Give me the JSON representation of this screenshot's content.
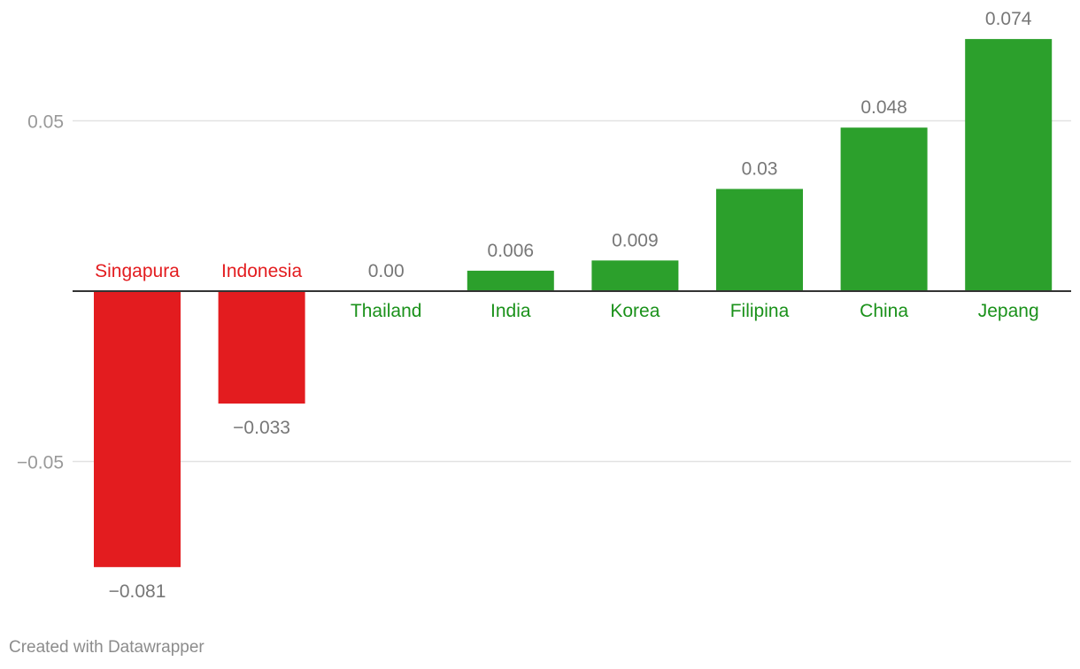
{
  "chart_data": {
    "type": "bar",
    "categories": [
      "Singapura",
      "Indonesia",
      "Thailand",
      "India",
      "Korea",
      "Filipina",
      "China",
      "Jepang"
    ],
    "values": [
      -0.081,
      -0.033,
      0.0,
      0.006,
      0.009,
      0.03,
      0.048,
      0.074
    ],
    "value_labels": [
      "−0.081",
      "−0.033",
      "0.00",
      "0.006",
      "0.009",
      "0.03",
      "0.048",
      "0.074"
    ],
    "yticks": [
      0.05,
      -0.05
    ],
    "ytick_labels": [
      "0.05",
      "−0.05"
    ],
    "ylim": [
      -0.09,
      0.08
    ],
    "grid": true,
    "colors": {
      "negative": "#e31c1f",
      "positive": "#2ca02c",
      "negative_label": "#e31c1f",
      "positive_label": "#1a911a",
      "value_label": "#777777",
      "grid": "#e2e2e2",
      "zero": "#333333",
      "tick": "#999999"
    }
  },
  "footer": "Created with Datawrapper"
}
